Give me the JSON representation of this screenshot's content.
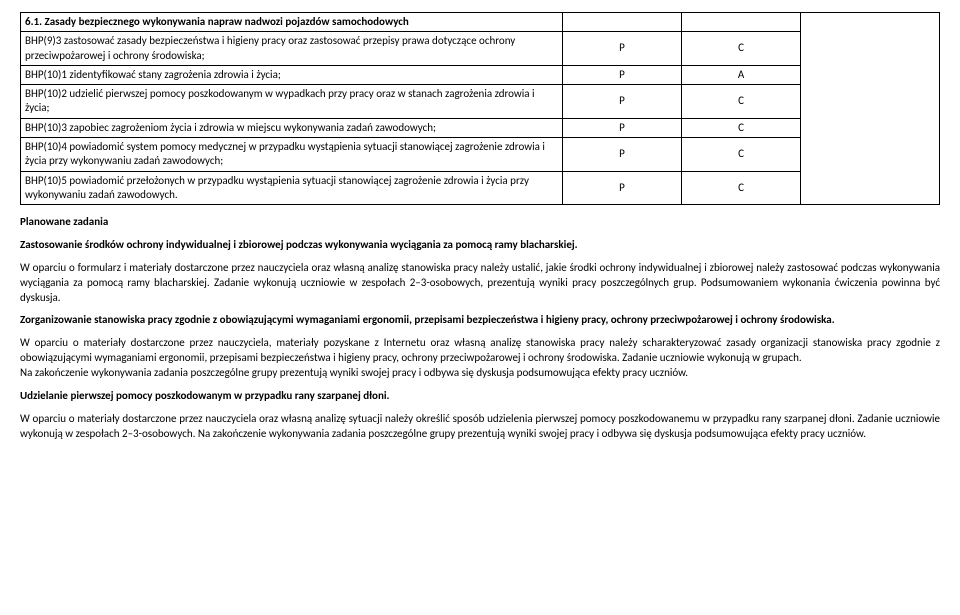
{
  "table": {
    "headerRow": {
      "title": "6.1. Zasady bezpiecznego wykonywania napraw nadwozi pojazdów samochodowych"
    },
    "rows": [
      {
        "text": "BHP(9)3 zastosować zasady bezpieczeństwa i higieny pracy oraz zastosować przepisy prawa dotyczące ochrony przeciwpożarowej i ochrony środowiska;",
        "col2": "P",
        "col3": "C"
      },
      {
        "text": "BHP(10)1 zidentyfikować stany zagrożenia zdrowia i życia;",
        "col2": "P",
        "col3": "A"
      },
      {
        "text": "BHP(10)2 udzielić pierwszej pomocy poszkodowanym w wypadkach przy pracy oraz w stanach zagrożenia zdrowia i życia;",
        "col2": "P",
        "col3": "C"
      },
      {
        "text": "BHP(10)3 zapobiec zagrożeniom życia i zdrowia w miejscu wykonywania zadań zawodowych;",
        "col2": "P",
        "col3": "C"
      },
      {
        "text": "BHP(10)4 powiadomić system pomocy medycznej w przypadku wystąpienia sytuacji stanowiącej zagrożenie zdrowia i życia przy wykonywaniu zadań zawodowych;",
        "col2": "P",
        "col3": "C"
      },
      {
        "text": "BHP(10)5 powiadomić przełożonych w przypadku wystąpienia sytuacji stanowiącej zagrożenie zdrowia i życia przy wykonywaniu zadań zawodowych.",
        "col2": "P",
        "col3": "C"
      }
    ]
  },
  "body": {
    "h1": "Planowane zadania",
    "h2": "Zastosowanie środków ochrony indywidualnej i zbiorowej podczas wykonywania wyciągania za pomocą ramy blacharskiej.",
    "p1": "W oparciu o formularz i materiały dostarczone przez nauczyciela oraz własną analizę stanowiska pracy należy ustalić, jakie środki ochrony indywidualnej i zbiorowej należy zastosować podczas wykonywania wyciągania za pomocą ramy blacharskiej. Zadanie wykonują uczniowie w zespołach 2–3-osobowych, prezentują wyniki pracy poszczególnych grup. Podsumowaniem wykonania ćwiczenia powinna być dyskusja.",
    "h3": "Zorganizowanie stanowiska pracy zgodnie z obowiązującymi wymaganiami ergonomii, przepisami bezpieczeństwa i higieny pracy, ochrony przeciwpożarowej i ochrony środowiska.",
    "p2a": "W oparciu o materiały dostarczone przez nauczyciela, materiały pozyskane z Internetu oraz własną analizę stanowiska pracy należy scharakteryzować zasady organizacji stanowiska pracy zgodnie z obowiązującymi wymaganiami ergonomii, przepisami bezpieczeństwa i higieny pracy, ochrony przeciwpożarowej i ochrony środowiska. Zadanie uczniowie wykonują w grupach.",
    "p2b": "Na zakończenie wykonywania zadania poszczególne grupy prezentują wyniki swojej pracy i odbywa się dyskusja podsumowująca efekty pracy uczniów.",
    "h4": "Udzielanie pierwszej pomocy poszkodowanym w przypadku rany szarpanej dłoni.",
    "p3": "W oparciu o materiały dostarczone przez nauczyciela oraz własną analizę sytuacji należy określić sposób udzielenia pierwszej pomocy poszkodowanemu w przypadku rany szarpanej dłoni. Zadanie uczniowie wykonują w zespołach 2–3-osobowych. Na zakończenie wykonywania zadania poszczególne grupy prezentują wyniki swojej pracy i odbywa się dyskusja podsumowująca efekty pracy uczniów."
  }
}
